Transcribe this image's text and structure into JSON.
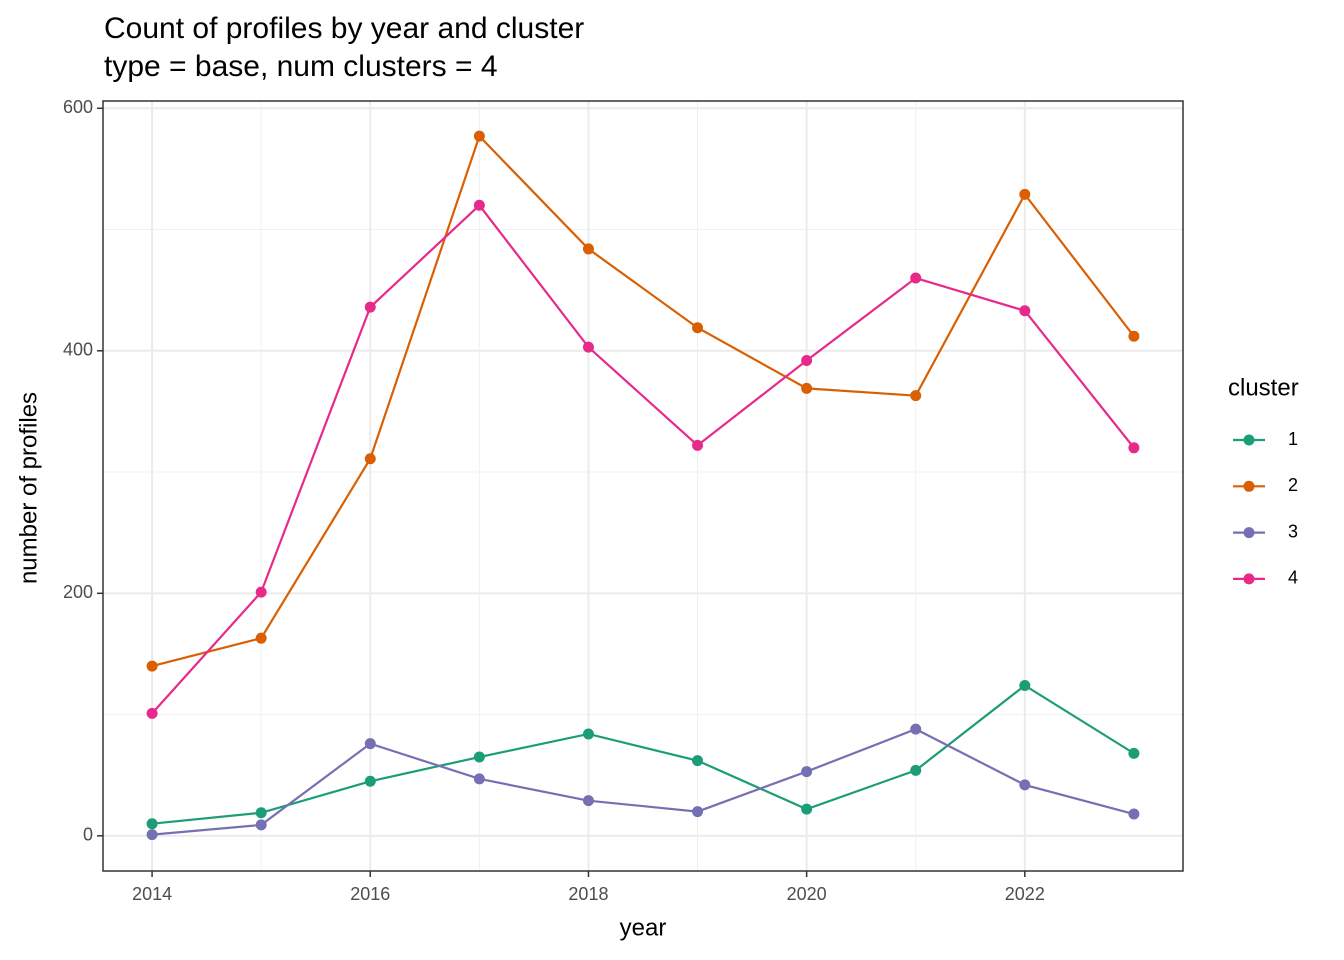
{
  "chart_data": {
    "type": "line",
    "title": "Count of profiles by year and cluster",
    "subtitle": "type = base, num clusters = 4",
    "x_label": "year",
    "y_label": "number of profiles",
    "legend_title": "cluster",
    "legend_position": "right",
    "grid": true,
    "x": [
      2014,
      2015,
      2016,
      2017,
      2018,
      2019,
      2020,
      2021,
      2022,
      2023
    ],
    "xlim": [
      2013.55,
      2023.45
    ],
    "xticks": [
      2014,
      2016,
      2018,
      2020,
      2022
    ],
    "ylim": [
      -29,
      606
    ],
    "yticks": [
      0,
      200,
      400,
      600
    ],
    "series": [
      {
        "name": "1",
        "color": "#1b9e77",
        "values": [
          10,
          19,
          45,
          65,
          84,
          62,
          22,
          54,
          124,
          68
        ]
      },
      {
        "name": "2",
        "color": "#d95f02",
        "values": [
          140,
          163,
          311,
          577,
          484,
          419,
          369,
          363,
          529,
          412
        ]
      },
      {
        "name": "3",
        "color": "#7570b3",
        "values": [
          1,
          9,
          76,
          47,
          29,
          20,
          53,
          88,
          42,
          18
        ]
      },
      {
        "name": "4",
        "color": "#e7298a",
        "values": [
          101,
          201,
          436,
          520,
          403,
          322,
          392,
          460,
          433,
          320
        ]
      }
    ]
  }
}
